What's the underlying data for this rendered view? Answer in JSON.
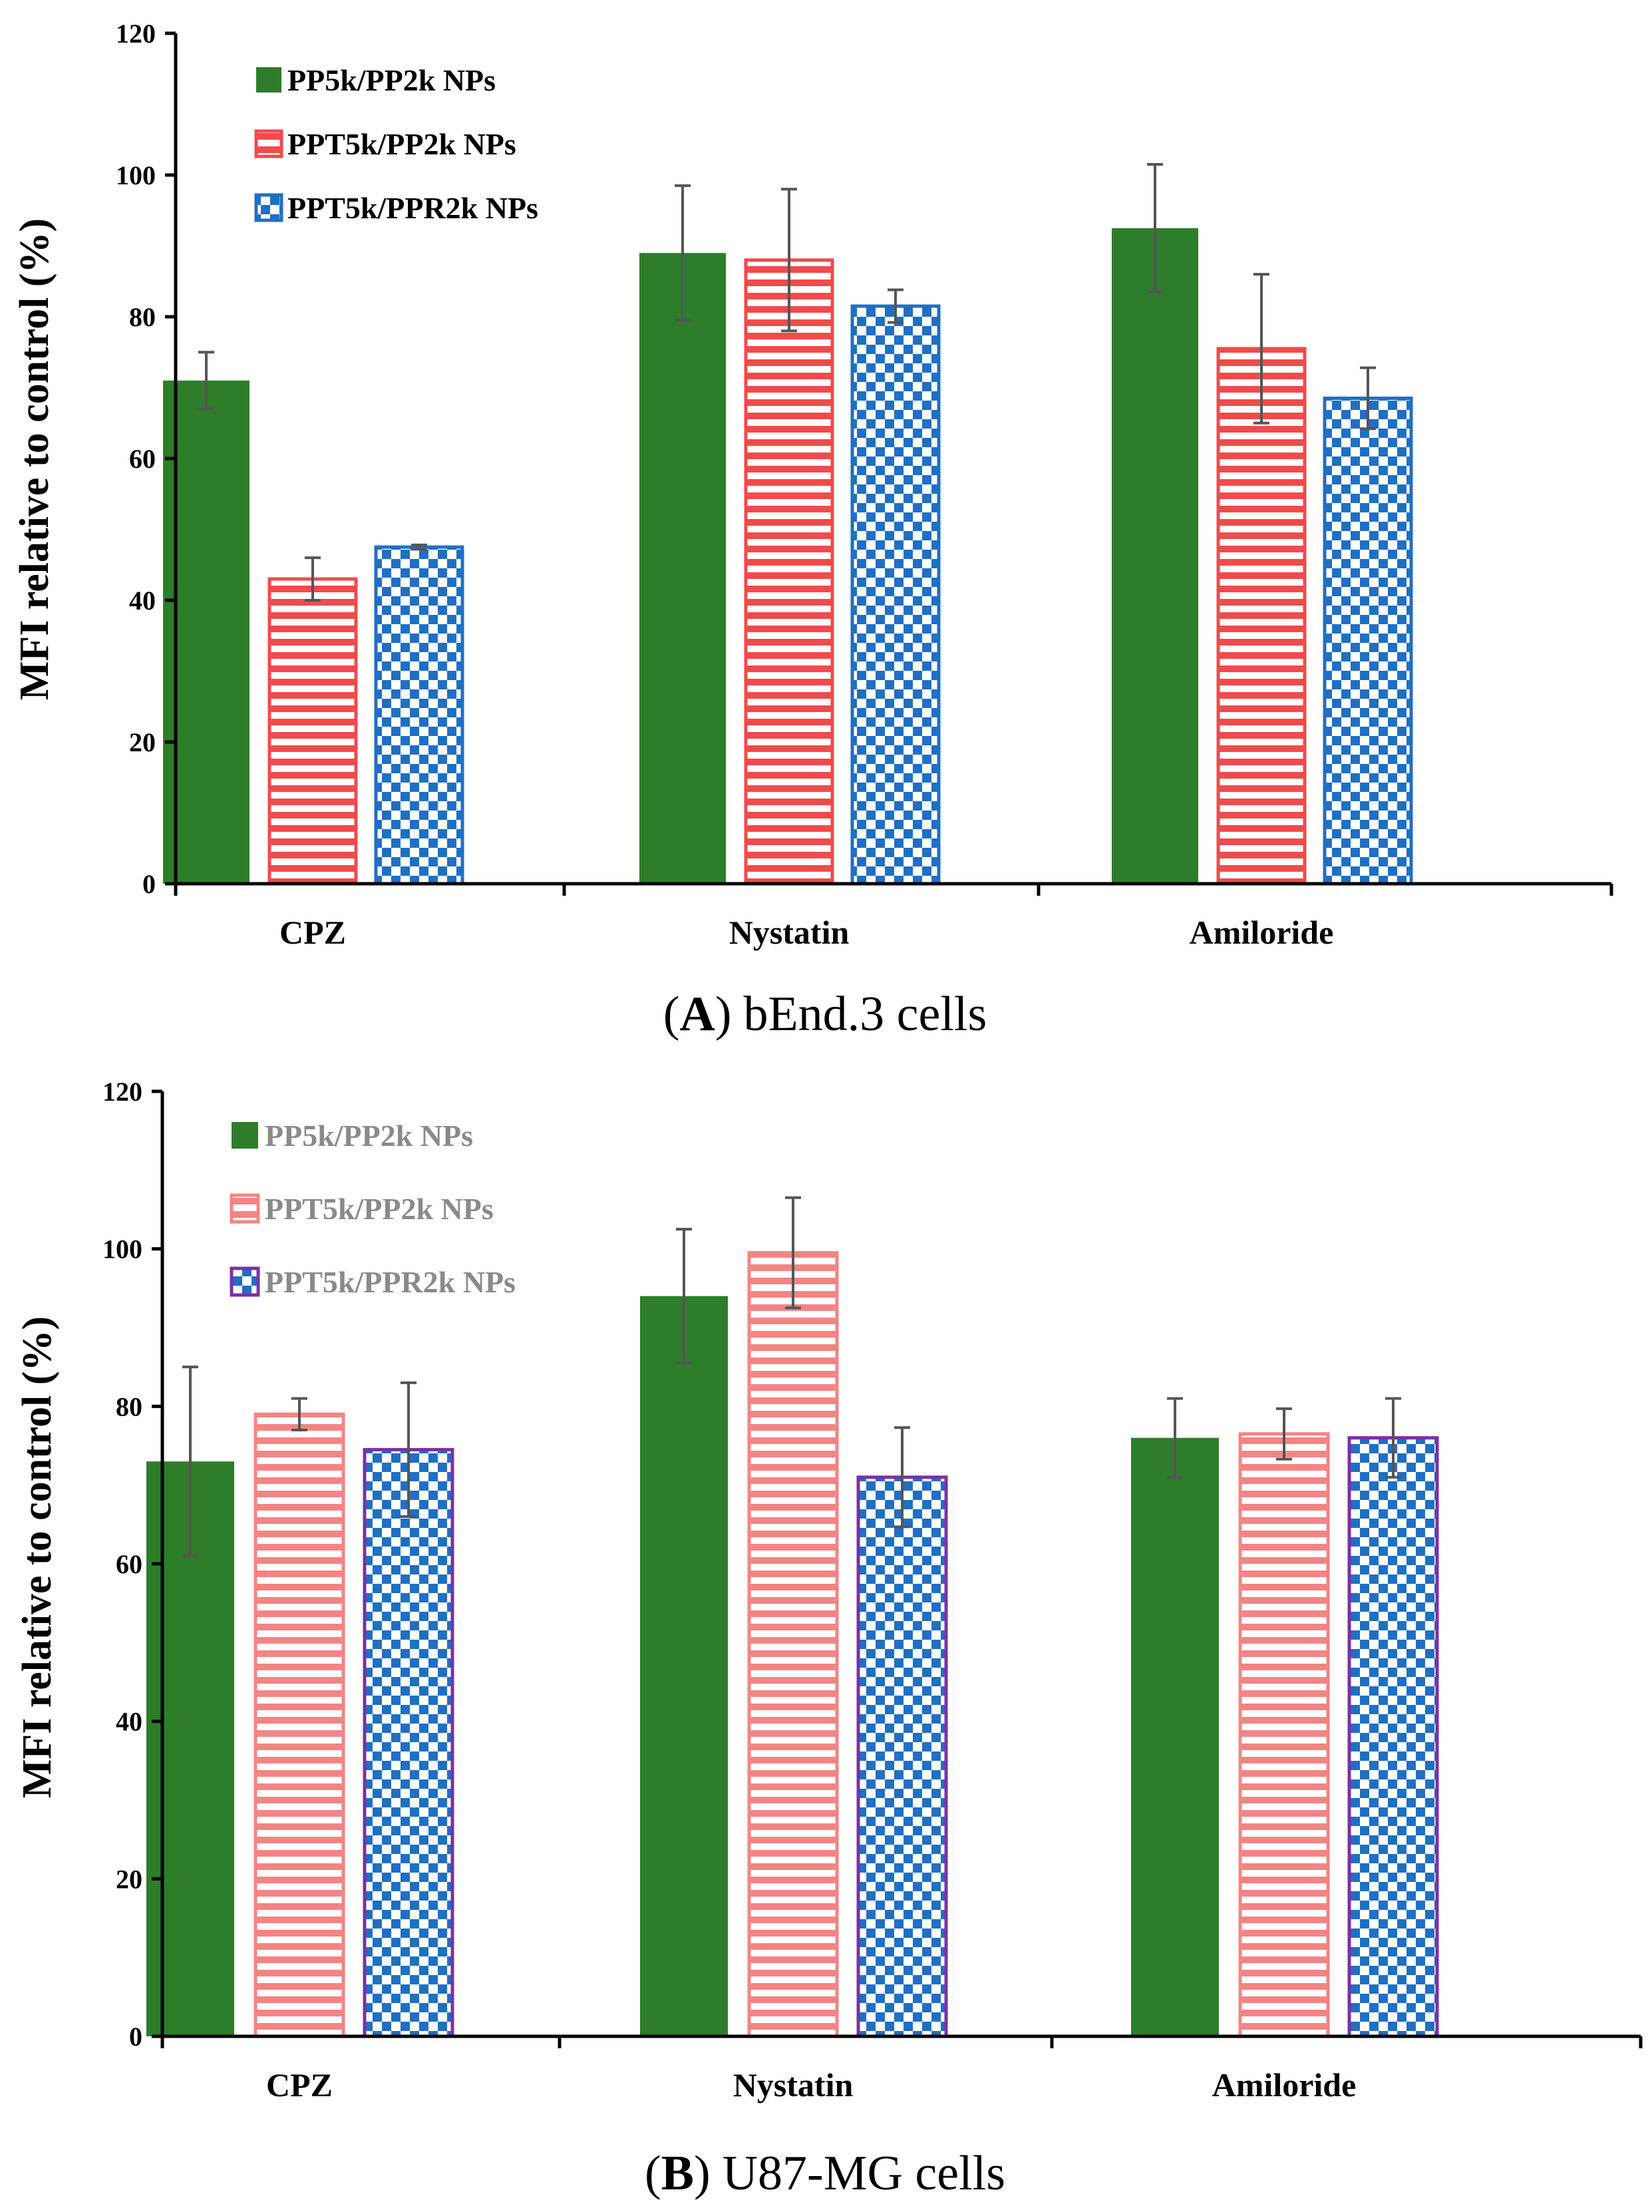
{
  "chart_data": [
    {
      "type": "bar",
      "caption_letter": "A",
      "caption_text": "bEnd.3 cells",
      "caption_open": "(",
      "caption_close": ")",
      "title": "",
      "xlabel": "",
      "ylabel": "MFI relative to control (%)",
      "ylim": [
        0,
        120
      ],
      "yticks": [
        "0",
        "20",
        "40",
        "60",
        "80",
        "100",
        "120"
      ],
      "categories": [
        "CPZ",
        "Nystatin",
        "Amiloride"
      ],
      "legend_position": "top-left",
      "legend_text_color": "#000000",
      "series": [
        {
          "name": "PP5k/PP2k NPs",
          "pattern": "solid",
          "color": "#2e7d2a",
          "edge": "#2e7d2a",
          "values": [
            71,
            89,
            92.5
          ],
          "errors": [
            4,
            9.5,
            9
          ]
        },
        {
          "name": "PPT5k/PP2k NPs",
          "pattern": "stripes",
          "color": "#f14a4c",
          "edge": "#f14a4c",
          "values": [
            43,
            88,
            75.5
          ],
          "errors": [
            3,
            10,
            10.5
          ]
        },
        {
          "name": "PPT5k/PPR2k NPs",
          "pattern": "checker",
          "color": "#1f6fc4",
          "edge": "#1f6fc4",
          "values": [
            47.5,
            81.5,
            68.5
          ],
          "errors": [
            0.3,
            2.3,
            4.3
          ]
        }
      ]
    },
    {
      "type": "bar",
      "caption_letter": "B",
      "caption_text": "U87-MG cells",
      "caption_open": "(",
      "caption_close": ")",
      "title": "",
      "xlabel": "",
      "ylabel": "MFI relative to control (%)",
      "ylim": [
        0,
        120
      ],
      "yticks": [
        "0",
        "20",
        "40",
        "60",
        "80",
        "100",
        "120"
      ],
      "categories": [
        "CPZ",
        "Nystatin",
        "Amiloride"
      ],
      "legend_position": "top-left",
      "legend_text_color": "#8a8a8a",
      "series": [
        {
          "name": "PP5k/PP2k NPs",
          "pattern": "solid",
          "color": "#2e7d2a",
          "edge": "#2e7d2a",
          "values": [
            73,
            94,
            76
          ],
          "errors": [
            12,
            8.5,
            5
          ]
        },
        {
          "name": "PPT5k/PP2k NPs",
          "pattern": "stripes",
          "color": "#f48484",
          "edge": "#f48484",
          "values": [
            79,
            99.5,
            76.5
          ],
          "errors": [
            2,
            7,
            3.2
          ]
        },
        {
          "name": "PPT5k/PPR2k NPs",
          "pattern": "checker",
          "color": "#1f6fc4",
          "edge": "#7b2fa8",
          "values": [
            74.5,
            71,
            76
          ],
          "errors": [
            8.5,
            6.3,
            5
          ]
        }
      ]
    }
  ]
}
